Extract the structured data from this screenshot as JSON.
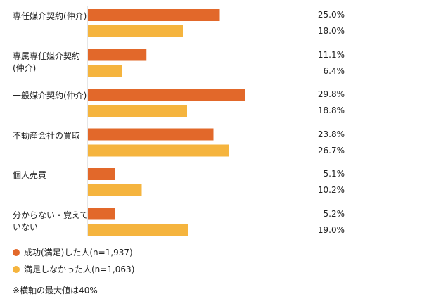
{
  "chart_data": {
    "type": "bar",
    "orientation": "horizontal",
    "categories": [
      "専任媒介契約(仲介)",
      "専属専任媒介契約(仲介)",
      "一般媒介契約(仲介)",
      "不動産会社の買取",
      "個人売買",
      "分からない・覚えていない"
    ],
    "series": [
      {
        "name": "成功(満足)した人(n=1,937)",
        "color": "#e2682a",
        "values": [
          25.0,
          11.1,
          29.8,
          23.8,
          5.1,
          5.2
        ]
      },
      {
        "name": "満足しなかった人(n=1,063)",
        "color": "#f5b43e",
        "values": [
          18.0,
          6.4,
          18.8,
          26.7,
          10.2,
          19.0
        ]
      }
    ],
    "value_labels": [
      [
        "25.0%",
        "18.0%"
      ],
      [
        "11.1%",
        "6.4%"
      ],
      [
        "29.8%",
        "18.8%"
      ],
      [
        "23.8%",
        "26.7%"
      ],
      [
        "5.1%",
        "10.2%"
      ],
      [
        "5.2%",
        "19.0%"
      ]
    ],
    "xlim": [
      0,
      40
    ],
    "grid": false,
    "legend_position": "bottom-left",
    "note": "※横軸の最大値は40%"
  }
}
